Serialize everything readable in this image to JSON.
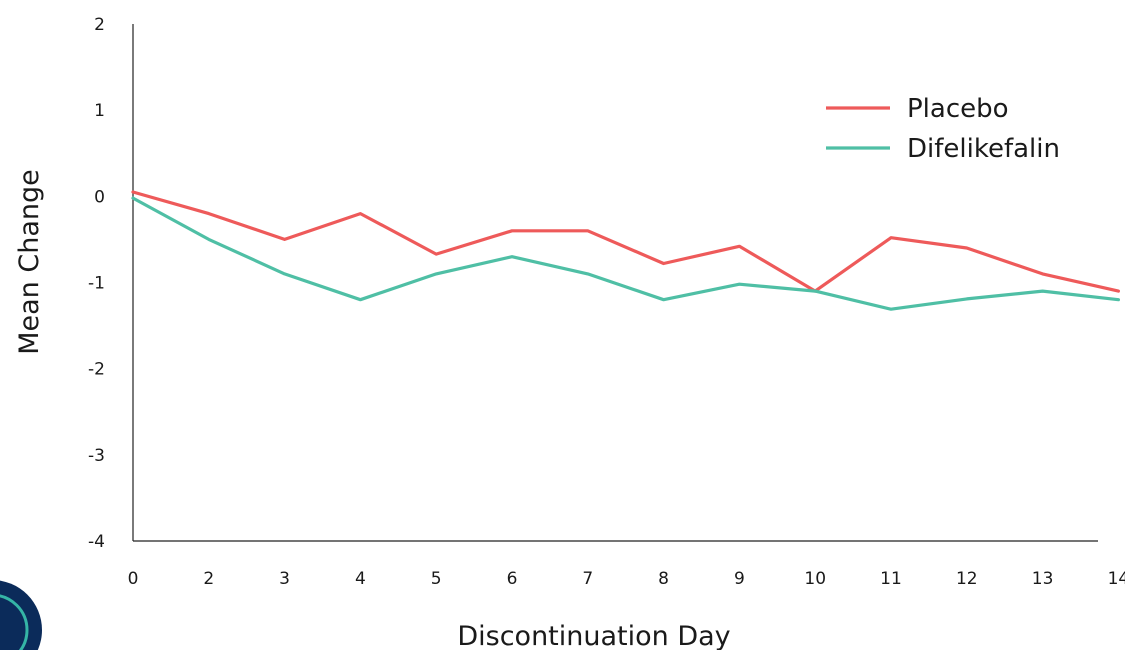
{
  "chart_data": {
    "type": "line",
    "xlabel": "Discontinuation Day",
    "ylabel": "Mean Change",
    "categories": [
      "0",
      "2",
      "3",
      "4",
      "5",
      "6",
      "7",
      "8",
      "9",
      "10",
      "11",
      "12",
      "13",
      "14"
    ],
    "ylim": [
      -4,
      2
    ],
    "yticks": [
      "2",
      "1",
      "0",
      "-1",
      "-2",
      "-3",
      "-4"
    ],
    "ytick_values": [
      2,
      1,
      0,
      -1,
      -2,
      -3,
      -4
    ],
    "grid": false,
    "legend_position": "top-right",
    "series": [
      {
        "name": "Placebo",
        "color": "#ee5a5a",
        "values": [
          0.05,
          -0.2,
          -0.5,
          -0.2,
          -0.67,
          -0.4,
          -0.4,
          -0.78,
          -0.58,
          -1.1,
          -0.48,
          -0.6,
          -0.9,
          -1.1
        ]
      },
      {
        "name": "Difelikefalin",
        "color": "#4fbfa5",
        "values": [
          -0.02,
          -0.5,
          -0.9,
          -1.2,
          -0.9,
          -0.7,
          -0.9,
          -1.2,
          -1.02,
          -1.1,
          -1.31,
          -1.19,
          -1.1,
          -1.2
        ]
      }
    ]
  },
  "decoration": {
    "badge_fill": "#0b2b5a",
    "badge_ring": "#35b5a6"
  }
}
